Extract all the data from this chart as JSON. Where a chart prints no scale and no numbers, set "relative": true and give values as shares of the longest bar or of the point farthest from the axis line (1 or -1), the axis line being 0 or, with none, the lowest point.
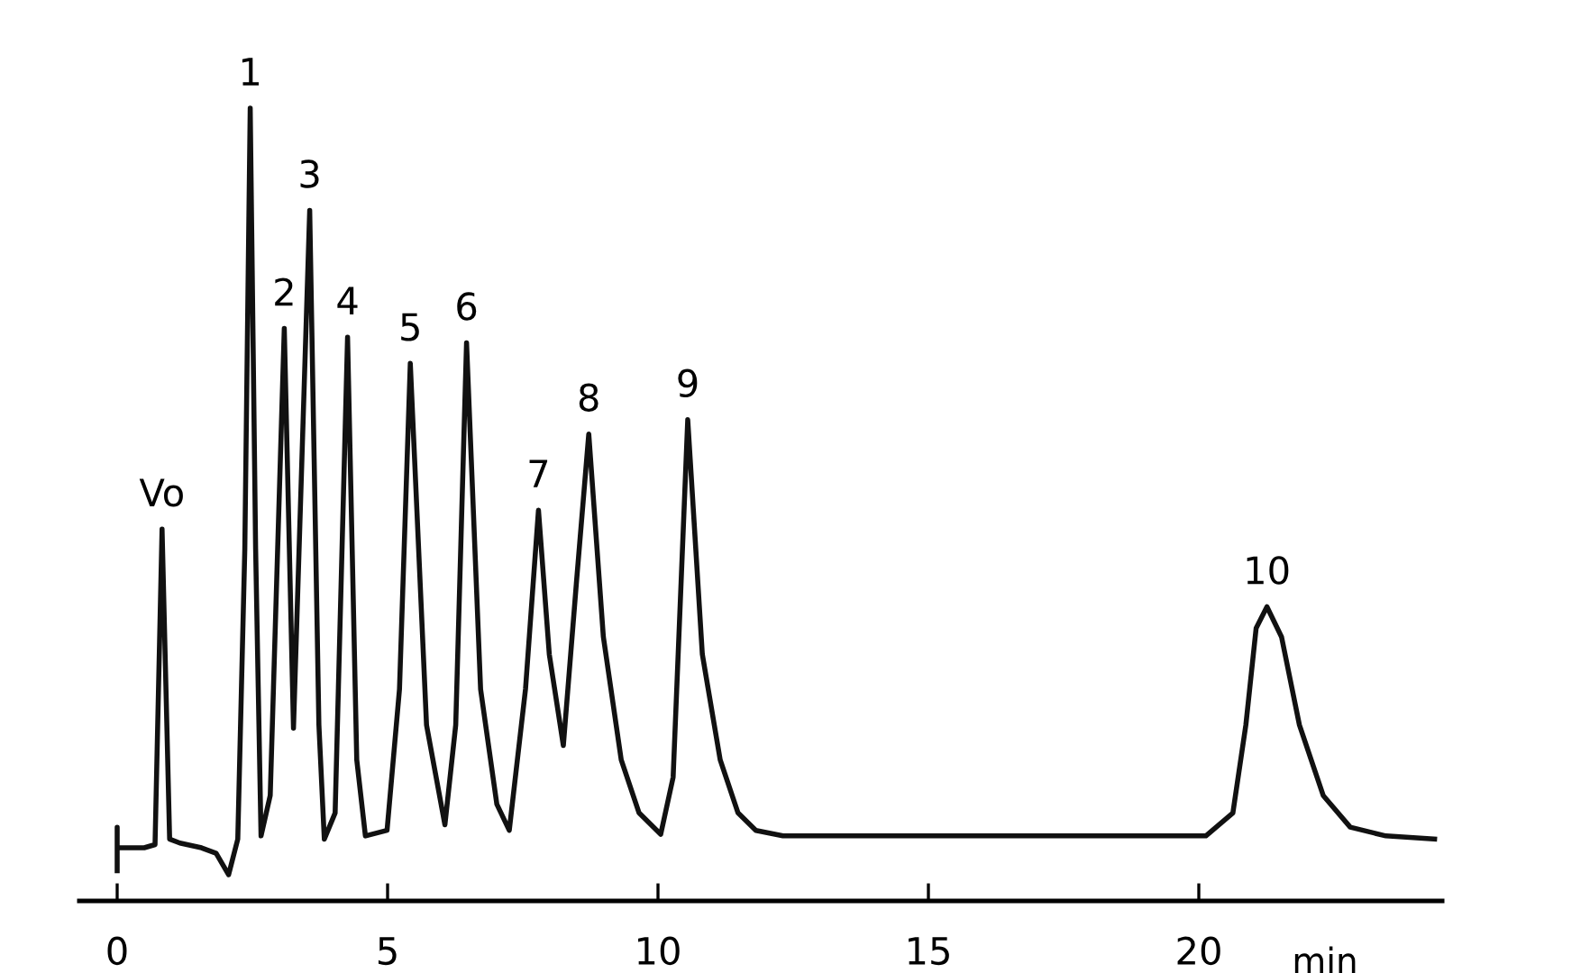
{
  "chart_data": {
    "type": "line",
    "relative": true,
    "xlabel": "min",
    "xlim": [
      -0.7,
      24.5
    ],
    "xticks": [
      0,
      5,
      10,
      15,
      20
    ],
    "grid": false,
    "legend": false,
    "tick_labels": "x",
    "line_style": "solid",
    "marker": "none",
    "series": [
      {
        "color": "#111111",
        "x": [
          0,
          0,
          0,
          0.5,
          0.7,
          0.83,
          0.97,
          1.16,
          1.56,
          1.83,
          2.06,
          2.23,
          2.36,
          2.46,
          2.56,
          2.66,
          2.83,
          3.09,
          3.26,
          3.56,
          3.73,
          3.83,
          4.03,
          4.26,
          4.43,
          4.59,
          4.99,
          5.22,
          5.42,
          5.72,
          6.06,
          6.26,
          6.46,
          6.72,
          7.02,
          7.25,
          7.55,
          7.79,
          7.99,
          8.25,
          8.49,
          8.72,
          8.99,
          9.32,
          9.65,
          10.05,
          10.28,
          10.55,
          10.82,
          11.15,
          11.48,
          11.81,
          12.31,
          20.13,
          20.63,
          20.87,
          21.06,
          21.26,
          21.53,
          21.86,
          22.3,
          22.8,
          23.46,
          24.36
        ],
        "values": [
          0.038,
          0.093,
          0.067,
          0.067,
          0.071,
          0.469,
          0.078,
          0.073,
          0.067,
          0.06,
          0.033,
          0.078,
          0.444,
          1.0,
          0.444,
          0.082,
          0.133,
          0.722,
          0.218,
          0.871,
          0.222,
          0.078,
          0.111,
          0.711,
          0.178,
          0.082,
          0.089,
          0.267,
          0.678,
          0.222,
          0.096,
          0.222,
          0.704,
          0.267,
          0.122,
          0.089,
          0.267,
          0.493,
          0.311,
          0.196,
          0.4,
          0.589,
          0.333,
          0.178,
          0.111,
          0.084,
          0.156,
          0.607,
          0.311,
          0.178,
          0.111,
          0.089,
          0.082,
          0.082,
          0.111,
          0.222,
          0.344,
          0.371,
          0.333,
          0.222,
          0.133,
          0.093,
          0.082,
          0.078
        ]
      }
    ],
    "annotations": [
      {
        "text": "Vo",
        "x": 0.83,
        "y": 0.469
      },
      {
        "text": "1",
        "x": 2.46,
        "y": 1.0
      },
      {
        "text": "2",
        "x": 3.09,
        "y": 0.722
      },
      {
        "text": "3",
        "x": 3.56,
        "y": 0.871
      },
      {
        "text": "4",
        "x": 4.26,
        "y": 0.711
      },
      {
        "text": "5",
        "x": 5.42,
        "y": 0.678
      },
      {
        "text": "6",
        "x": 6.46,
        "y": 0.704
      },
      {
        "text": "7",
        "x": 7.79,
        "y": 0.493
      },
      {
        "text": "8",
        "x": 8.72,
        "y": 0.589
      },
      {
        "text": "9",
        "x": 10.55,
        "y": 0.607
      },
      {
        "text": "10",
        "x": 21.26,
        "y": 0.371
      }
    ]
  }
}
